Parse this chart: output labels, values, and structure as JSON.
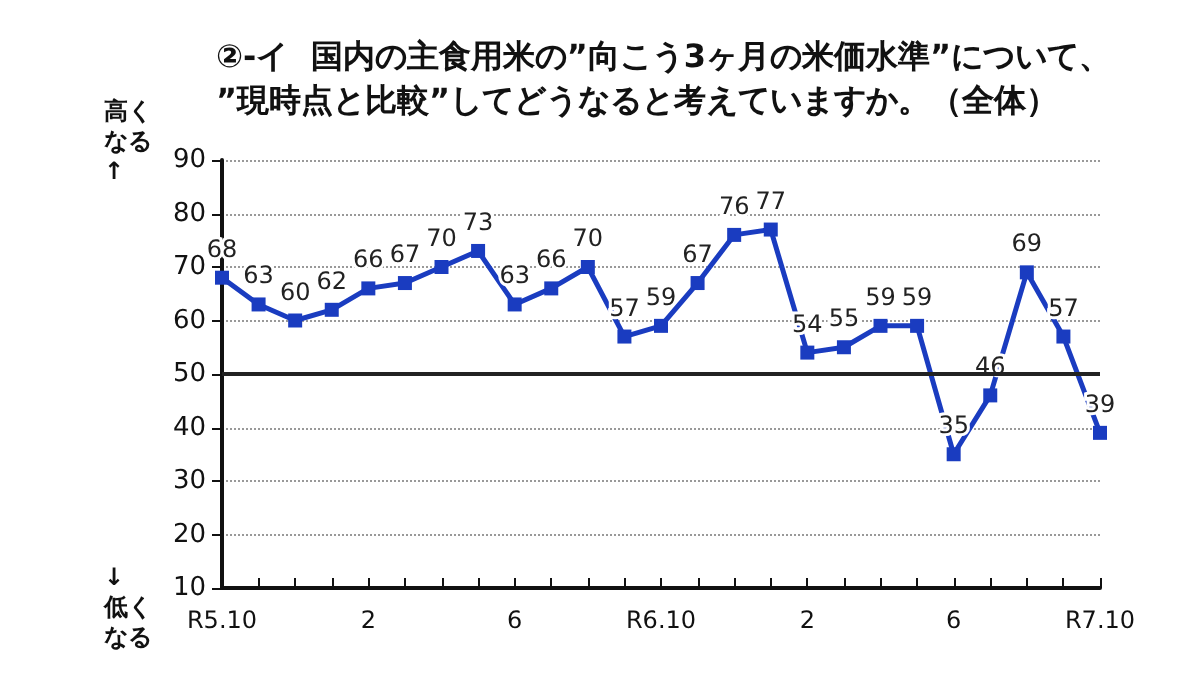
{
  "chart_data": {
    "type": "line",
    "title": "②-イ  国内の主食用米の”向こう3ヶ月の米価水準”について、\n”現時点と比較”してどうなると考えていますか。（全体）",
    "ylabel": "高くなる↑",
    "annotations": [
      "↓低くなる"
    ],
    "categories": [
      "R5.10",
      null,
      null,
      null,
      "2",
      null,
      null,
      null,
      "6",
      null,
      null,
      null,
      "R6.10",
      null,
      null,
      null,
      "2",
      null,
      null,
      null,
      "6",
      null,
      null,
      null,
      "R7.10"
    ],
    "series": [
      {
        "color": "#1a3cc0",
        "values": [
          68,
          63,
          60,
          62,
          66,
          67,
          70,
          73,
          63,
          66,
          70,
          57,
          59,
          67,
          76,
          77,
          54,
          55,
          59,
          59,
          35,
          46,
          69,
          57,
          39
        ]
      }
    ],
    "ylim": [
      10,
      90
    ],
    "yticks": [
      10,
      20,
      30,
      40,
      50,
      60,
      70,
      80,
      90
    ],
    "ref_lines": [
      {
        "axis": "y",
        "value": 50,
        "color": "#222222",
        "line_style": "solid"
      }
    ],
    "grid": "y",
    "marker": "square",
    "line_style": "solid",
    "data_labels": true
  }
}
